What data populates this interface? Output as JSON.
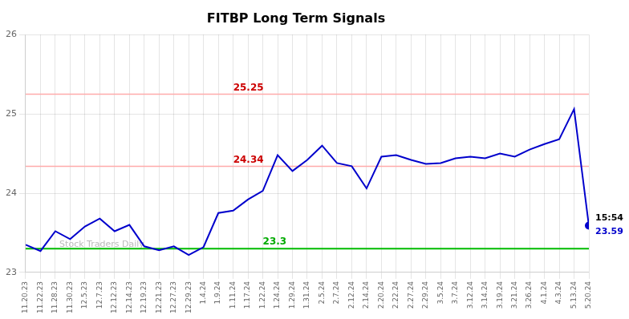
{
  "chart_data": {
    "type": "line",
    "title": "FITBP Long Term Signals",
    "categories": [
      "11.20.23",
      "11.22.23",
      "11.28.23",
      "11.30.23",
      "12.5.23",
      "12.7.23",
      "12.12.23",
      "12.14.23",
      "12.19.23",
      "12.21.23",
      "12.27.23",
      "12.29.23",
      "1.4.24",
      "1.9.24",
      "1.11.24",
      "1.17.24",
      "1.22.24",
      "1.24.24",
      "1.29.24",
      "1.31.24",
      "2.5.24",
      "2.7.24",
      "2.12.24",
      "2.14.24",
      "2.20.24",
      "2.22.24",
      "2.27.24",
      "2.29.24",
      "3.5.24",
      "3.7.24",
      "3.12.24",
      "3.14.24",
      "3.19.24",
      "3.21.24",
      "3.26.24",
      "4.1.24",
      "4.3.24",
      "5.13.24",
      "5.20.24"
    ],
    "values": [
      23.35,
      23.27,
      23.52,
      23.42,
      23.58,
      23.68,
      23.52,
      23.6,
      23.33,
      23.28,
      23.33,
      23.22,
      23.32,
      23.75,
      23.78,
      23.92,
      24.03,
      24.48,
      24.28,
      24.42,
      24.6,
      24.38,
      24.34,
      24.06,
      24.46,
      24.48,
      24.42,
      24.37,
      24.38,
      24.44,
      24.46,
      24.44,
      24.5,
      24.46,
      24.55,
      24.62,
      24.68,
      25.06,
      23.59
    ],
    "color": "#0000cc",
    "ylim": [
      23.0,
      26.0
    ],
    "yticks": [
      23,
      24,
      25,
      26
    ],
    "grid": true,
    "hlines": [
      {
        "value": 25.25,
        "label": "25.25",
        "color": "#ffaaaa",
        "label_color": "#cc0000"
      },
      {
        "value": 24.34,
        "label": "24.34",
        "color": "#ffaaaa",
        "label_color": "#cc0000"
      },
      {
        "value": 23.3,
        "label": "23.3",
        "color": "#00bb00",
        "label_color": "#00aa00"
      }
    ],
    "endpoint_labels": [
      "15:54",
      "23.59"
    ],
    "endpoint_label_colors": [
      "#000000",
      "#0000cc"
    ],
    "endpoint_color": "#0000cc",
    "watermark": "Stock Traders Daily",
    "watermark_color": "#bbbbbb"
  }
}
